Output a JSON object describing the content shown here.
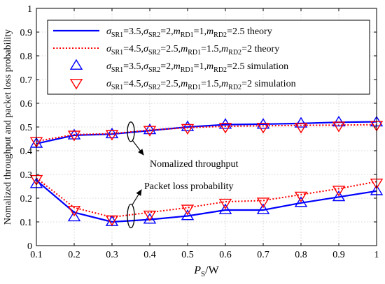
{
  "chart_data": {
    "type": "line",
    "xlabel": {
      "main": "P",
      "sub": "S",
      "tail": "/W"
    },
    "ylabel": "Nomalized throughput and packet loss probability",
    "xlim": [
      0.1,
      1
    ],
    "ylim": [
      0,
      1
    ],
    "xticks": [
      0.1,
      0.2,
      0.3,
      0.4,
      0.5,
      0.6,
      0.7,
      0.8,
      0.9,
      1
    ],
    "xtick_labels": [
      "0.1",
      "0.2",
      "0.3",
      "0.4",
      "0.5",
      "0.6",
      "0.7",
      "0.8",
      "0.9",
      "1"
    ],
    "yticks": [
      0,
      0.1,
      0.2,
      0.3,
      0.4,
      0.5,
      0.6,
      0.7,
      0.8,
      0.9,
      1
    ],
    "ytick_labels": [
      "0",
      "0.1",
      "0.2",
      "0.3",
      "0.4",
      "0.5",
      "0.6",
      "0.7",
      "0.8",
      "0.9",
      "1"
    ],
    "grid": true,
    "legend_position": "top-right",
    "x": [
      0.1,
      0.2,
      0.3,
      0.4,
      0.5,
      0.6,
      0.7,
      0.8,
      0.9,
      1.0
    ],
    "series": [
      {
        "name": "σSR1=3.5,σSR2=2,mRD1=1,mRD2=2.5 theory",
        "legend": {
          "sr1": "3.5",
          "sr2": "2",
          "rd1": "1",
          "rd2": "2.5",
          "tail": "theory"
        },
        "group": "throughput",
        "kind": "theory",
        "color": "#0000ff",
        "line": "solid",
        "marker": "none",
        "values": [
          0.43,
          0.465,
          0.47,
          0.485,
          0.5,
          0.51,
          0.512,
          0.515,
          0.52,
          0.522
        ]
      },
      {
        "name": "σSR1=4.5,σSR2=2.5,mRD1=1.5,mRD2=2 theory",
        "legend": {
          "sr1": "4.5",
          "sr2": "2.5",
          "rd1": "1.5",
          "rd2": "2",
          "tail": "theory"
        },
        "group": "throughput",
        "kind": "theory",
        "color": "#ff0000",
        "line": "dotted",
        "marker": "none",
        "values": [
          0.44,
          0.468,
          0.472,
          0.487,
          0.497,
          0.503,
          0.505,
          0.507,
          0.508,
          0.51
        ]
      },
      {
        "name": "σSR1=3.5,σSR2=2,mRD1=1,mRD2=2.5 simulation",
        "legend": {
          "sr1": "3.5",
          "sr2": "2",
          "rd1": "1",
          "rd2": "2.5",
          "tail": "simulation"
        },
        "group": "throughput",
        "kind": "simulation",
        "color": "#0000ff",
        "line": "none",
        "marker": "triangle-up",
        "values": [
          0.43,
          0.465,
          0.47,
          0.487,
          0.5,
          0.51,
          0.51,
          0.515,
          0.52,
          0.52
        ]
      },
      {
        "name": "σSR1=4.5,σSR2=2.5,mRD1=1.5,mRD2=2 simulation",
        "legend": {
          "sr1": "4.5",
          "sr2": "2.5",
          "rd1": "1.5",
          "rd2": "2",
          "tail": "simulation"
        },
        "group": "throughput",
        "kind": "simulation",
        "color": "#ff0000",
        "line": "none",
        "marker": "triangle-down",
        "values": [
          0.44,
          0.467,
          0.47,
          0.487,
          0.495,
          0.5,
          0.5,
          0.5,
          0.505,
          0.508
        ]
      },
      {
        "name": "σSR1=3.5,σSR2=2,mRD1=1,mRD2=2.5 theory",
        "group": "packet_loss",
        "kind": "theory",
        "color": "#0000ff",
        "line": "solid",
        "marker": "none",
        "values": [
          0.275,
          0.14,
          0.1,
          0.11,
          0.125,
          0.15,
          0.15,
          0.18,
          0.205,
          0.23
        ]
      },
      {
        "name": "σSR1=4.5,σSR2=2.5,mRD1=1.5,mRD2=2 theory",
        "group": "packet_loss",
        "kind": "theory",
        "color": "#ff0000",
        "line": "dotted",
        "marker": "none",
        "values": [
          0.285,
          0.16,
          0.12,
          0.14,
          0.16,
          0.185,
          0.19,
          0.215,
          0.24,
          0.27
        ]
      },
      {
        "name": "σSR1=3.5,σSR2=2,mRD1=1,mRD2=2.5 simulation",
        "group": "packet_loss",
        "kind": "simulation",
        "color": "#0000ff",
        "line": "none",
        "marker": "triangle-up",
        "values": [
          0.26,
          0.12,
          0.1,
          0.11,
          0.125,
          0.15,
          0.15,
          0.18,
          0.205,
          0.23
        ]
      },
      {
        "name": "σSR1=4.5,σSR2=2.5,mRD1=1.5,mRD2=2 simulation",
        "group": "packet_loss",
        "kind": "simulation",
        "color": "#ff0000",
        "line": "none",
        "marker": "triangle-down",
        "values": [
          0.28,
          0.15,
          0.11,
          0.13,
          0.155,
          0.18,
          0.185,
          0.21,
          0.235,
          0.265
        ]
      }
    ],
    "annotations": [
      {
        "name": "throughput-annotation",
        "text": "Nomalized throughput",
        "target_x": 0.35,
        "target_y": 0.48
      },
      {
        "name": "packet-loss-annotation",
        "text": "Packet loss probability",
        "target_x": 0.35,
        "target_y": 0.125
      }
    ]
  }
}
